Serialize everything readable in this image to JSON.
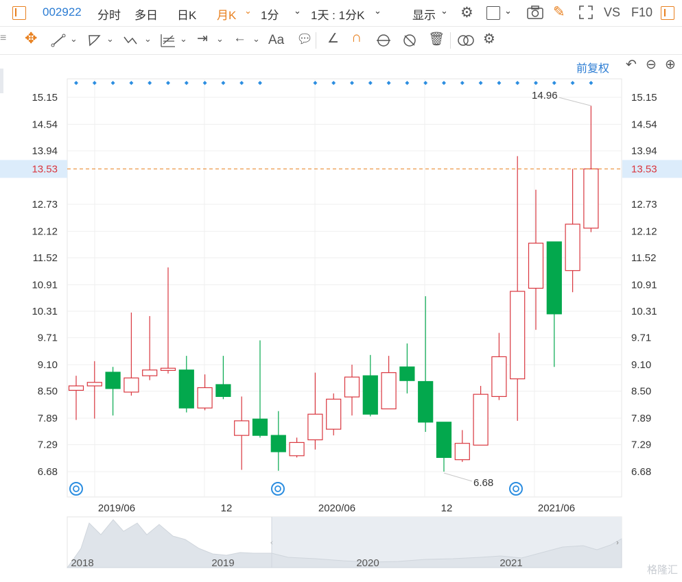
{
  "topbar": {
    "stock_code": "002922",
    "tabs": [
      "分时",
      "多日",
      "日K",
      "月K",
      "1分"
    ],
    "active_tab": "月K",
    "interval_selector": "1天 : 1分K",
    "display_label": "显示",
    "vs_label": "VS",
    "f10_label": "F10"
  },
  "toolbar": {
    "text_tool": "Aa"
  },
  "chart_header": {
    "adjust_mode": "前复权"
  },
  "chart_data": {
    "type": "candlestick",
    "title": "",
    "y_ticks": [
      15.15,
      14.54,
      13.94,
      13.53,
      12.73,
      12.12,
      11.52,
      10.91,
      10.31,
      9.71,
      9.1,
      8.5,
      7.89,
      7.29,
      6.68
    ],
    "y_range": [
      6.68,
      15.15
    ],
    "x_tick_labels": [
      "2019/06",
      "12",
      "2020/06",
      "12",
      "2021/06"
    ],
    "last_price": 13.53,
    "high_label": "14.96",
    "low_label": "6.68",
    "candles": [
      {
        "o": 8.52,
        "h": 8.85,
        "l": 7.85,
        "c": 8.62
      },
      {
        "o": 8.62,
        "h": 9.18,
        "l": 7.88,
        "c": 8.7
      },
      {
        "o": 8.93,
        "h": 9.05,
        "l": 7.95,
        "c": 8.56
      },
      {
        "o": 8.48,
        "h": 10.28,
        "l": 8.4,
        "c": 8.8
      },
      {
        "o": 8.85,
        "h": 10.2,
        "l": 8.75,
        "c": 8.98
      },
      {
        "o": 8.97,
        "h": 11.3,
        "l": 8.9,
        "c": 9.02
      },
      {
        "o": 8.98,
        "h": 9.3,
        "l": 8.02,
        "c": 8.12
      },
      {
        "o": 8.12,
        "h": 8.88,
        "l": 8.07,
        "c": 8.58
      },
      {
        "o": 8.65,
        "h": 9.3,
        "l": 8.32,
        "c": 8.38
      },
      {
        "o": 7.5,
        "h": 8.38,
        "l": 6.72,
        "c": 7.83
      },
      {
        "o": 7.87,
        "h": 9.65,
        "l": 7.45,
        "c": 7.5
      },
      {
        "o": 7.5,
        "h": 8.05,
        "l": 6.7,
        "c": 7.13
      },
      {
        "o": 7.04,
        "h": 7.45,
        "l": 7.0,
        "c": 7.34
      },
      {
        "o": 7.4,
        "h": 8.92,
        "l": 7.18,
        "c": 7.98
      },
      {
        "o": 7.64,
        "h": 8.45,
        "l": 7.5,
        "c": 8.32
      },
      {
        "o": 8.37,
        "h": 9.1,
        "l": 7.95,
        "c": 8.82
      },
      {
        "o": 8.85,
        "h": 9.32,
        "l": 7.93,
        "c": 7.98
      },
      {
        "o": 8.1,
        "h": 9.3,
        "l": 8.1,
        "c": 8.92
      },
      {
        "o": 9.05,
        "h": 9.58,
        "l": 8.45,
        "c": 8.74
      },
      {
        "o": 8.72,
        "h": 10.65,
        "l": 7.58,
        "c": 7.8
      },
      {
        "o": 7.8,
        "h": 7.8,
        "l": 6.68,
        "c": 7.0
      },
      {
        "o": 6.95,
        "h": 7.62,
        "l": 6.9,
        "c": 7.32
      },
      {
        "o": 7.28,
        "h": 8.62,
        "l": 7.28,
        "c": 8.43
      },
      {
        "o": 8.38,
        "h": 9.82,
        "l": 8.3,
        "c": 9.28
      },
      {
        "o": 8.78,
        "h": 13.82,
        "l": 7.83,
        "c": 10.76
      },
      {
        "o": 10.83,
        "h": 13.06,
        "l": 9.89,
        "c": 11.85
      },
      {
        "o": 11.88,
        "h": 11.88,
        "l": 9.05,
        "c": 10.25
      },
      {
        "o": 11.23,
        "h": 13.53,
        "l": 10.74,
        "c": 12.28
      },
      {
        "o": 12.19,
        "h": 14.96,
        "l": 12.1,
        "c": 13.53
      }
    ],
    "navigator_year_labels": [
      "2018",
      "2019",
      "2020",
      "2021"
    ]
  },
  "watermark": "格隆汇"
}
